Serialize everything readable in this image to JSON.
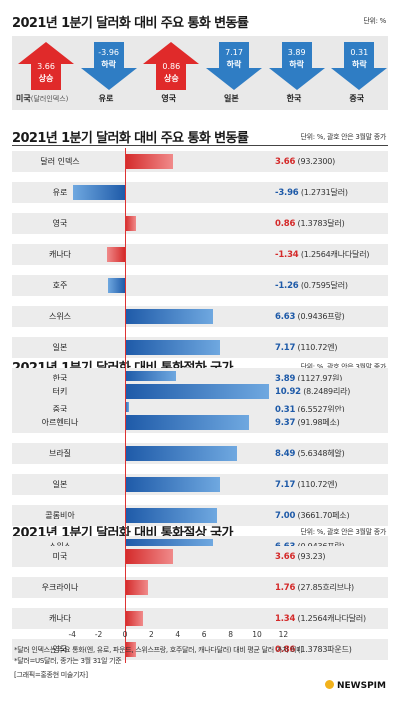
{
  "header": {
    "title": "2021년 1분기 달러화 대비 주요 통화 변동률",
    "unit": "단위: %"
  },
  "arrows": [
    {
      "value": "3.66",
      "label": "상승",
      "name": "미국",
      "sub": "(달러인덱스)",
      "dir": "up",
      "color": "#e02a2a"
    },
    {
      "value": "-3.96",
      "label": "하락",
      "name": "유로",
      "sub": "",
      "dir": "down",
      "color": "#2f7dc4"
    },
    {
      "value": "0.86",
      "label": "상승",
      "name": "영국",
      "sub": "",
      "dir": "up",
      "color": "#e02a2a"
    },
    {
      "value": "7.17",
      "label": "하락",
      "name": "일본",
      "sub": "",
      "dir": "down",
      "color": "#2f7dc4"
    },
    {
      "value": "3.89",
      "label": "하락",
      "name": "한국",
      "sub": "",
      "dir": "down",
      "color": "#2f7dc4"
    },
    {
      "value": "0.31",
      "label": "하락",
      "name": "중국",
      "sub": "",
      "dir": "down",
      "color": "#2f7dc4"
    }
  ],
  "sections": [
    {
      "title": "2021년 1분기 달러화 대비 주요 통화 변동률",
      "unit": "단위: %, 괄호 안은 3월말 종가"
    },
    {
      "title": "2021년 1분기 달러화 대비 통화절하 국가",
      "unit": "단위: %, 괄호 안은 3월말 종가"
    },
    {
      "title": "2021년 1분기 달러화 대비 통화절상 국가",
      "unit": "단위: %, 괄호 안은 3월말 종가"
    }
  ],
  "chart_data": [
    {
      "type": "bar",
      "title": "2021년 1분기 달러화 대비 주요 통화 변동률",
      "categories": [
        "달러 인덱스",
        "유로",
        "영국",
        "캐나다",
        "호주",
        "스위스",
        "일본",
        "한국",
        "중국"
      ],
      "values": [
        3.66,
        -3.96,
        0.86,
        -1.34,
        -1.26,
        6.63,
        7.17,
        3.89,
        0.31
      ],
      "value_labels": [
        "3.66",
        "-3.96",
        "0.86",
        "-1.34",
        "-1.26",
        "6.63",
        "7.17",
        "3.89",
        "0.31"
      ],
      "closing": [
        "(93.2300)",
        "(1.2731달러)",
        "(1.3783달러)",
        "(1.2564캐나다달러)",
        "(0.7595달러)",
        "(0.9436프랑)",
        "(110.72엔)",
        "(1127.97원)",
        "(6.5527위안)"
      ],
      "bar_colors": [
        "red",
        "blue",
        "red",
        "red",
        "blue",
        "blue",
        "blue",
        "blue",
        "blue"
      ],
      "label_colors": [
        "#d42a2a",
        "#1e5aa8",
        "#d42a2a",
        "#d42a2a",
        "#1e5aa8",
        "#1e5aa8",
        "#1e5aa8",
        "#1e5aa8",
        "#1e5aa8"
      ],
      "xlim": [
        -4,
        12
      ]
    },
    {
      "type": "bar",
      "title": "2021년 1분기 달러화 대비 통화절하 국가",
      "categories": [
        "터키",
        "아르헨티나",
        "브라질",
        "일본",
        "콜롬비아",
        "스위스"
      ],
      "values": [
        10.92,
        9.37,
        8.49,
        7.17,
        7.0,
        6.63
      ],
      "value_labels": [
        "10.92",
        "9.37",
        "8.49",
        "7.17",
        "7.00",
        "6.63"
      ],
      "closing": [
        "(8.2489리라)",
        "(91.98페소)",
        "(5.6348헤알)",
        "(110.72엔)",
        "(3661.70페소)",
        "(0.9436프랑)"
      ],
      "bar_colors": [
        "blue",
        "blue",
        "blue",
        "blue",
        "blue",
        "blue"
      ],
      "label_colors": [
        "#1e5aa8",
        "#1e5aa8",
        "#1e5aa8",
        "#1e5aa8",
        "#1e5aa8",
        "#1e5aa8"
      ],
      "xlim": [
        -4,
        12
      ]
    },
    {
      "type": "bar",
      "title": "2021년 1분기 달러화 대비 통화절상 국가",
      "categories": [
        "미국",
        "우크라이나",
        "캐나다",
        "영국"
      ],
      "values": [
        3.66,
        1.76,
        1.34,
        0.86
      ],
      "value_labels": [
        "3.66",
        "1.76",
        "1.34",
        "0.86"
      ],
      "closing": [
        "(93.23)",
        "(27.85흐리브냐)",
        "(1.2564캐나다달러)",
        "(1.3783파운드)"
      ],
      "bar_colors": [
        "red",
        "red",
        "red",
        "red"
      ],
      "label_colors": [
        "#d42a2a",
        "#d42a2a",
        "#d42a2a",
        "#d42a2a"
      ],
      "xlim": [
        -4,
        12
      ]
    }
  ],
  "axis": {
    "ticks": [
      "-4",
      "-2",
      "0",
      "2",
      "4",
      "6",
      "8",
      "10",
      "12"
    ]
  },
  "notes": [
    "*달러 인덱스는 주요 통화(엔, 유로, 파운드, 스위스프랑, 호주달러, 캐나다달러) 대비 평균 달러 가치 의미",
    "*달러=US달러, 종가는 3월 31일 기준",
    "[그래픽=홍종현 미술기자]"
  ],
  "brand": "NEWSPIM"
}
